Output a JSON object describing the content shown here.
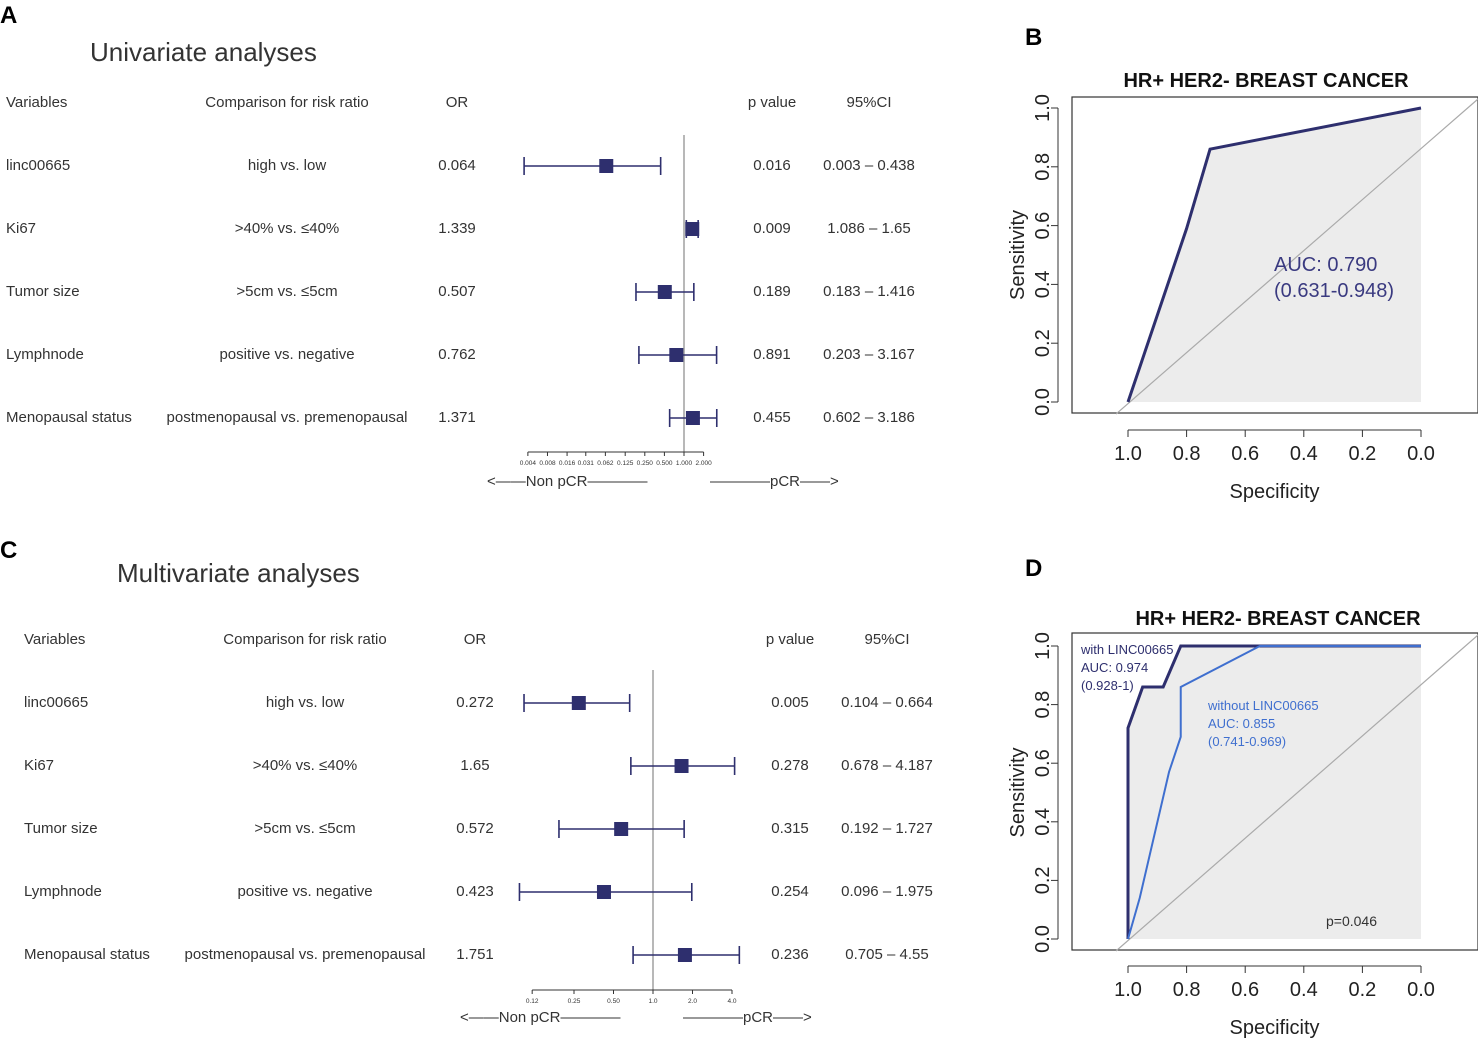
{
  "panels": {
    "a": "A",
    "b": "B",
    "c": "C",
    "d": "D"
  },
  "colors": {
    "navy": "#2e2f6e",
    "blue": "#3f6fcf",
    "gray_fill": "#ececec",
    "diag": "#aaaaaa"
  },
  "forest": {
    "headers": {
      "variables": "Variables",
      "comparison": "Comparison for risk ratio",
      "or": "OR",
      "p": "p value",
      "ci": "95%CI"
    },
    "left_arrow": "<——Non pCR————",
    "right_arrow": "————pCR——>"
  },
  "chart_data": [
    {
      "type": "forest",
      "panel": "A",
      "title": "Univariate analyses",
      "x_scale": "log2",
      "ref_line": 1,
      "tick_labels": [
        "0.004",
        "0.008",
        "0.016",
        "0.031",
        "0.062",
        "0.125",
        "0.250",
        "0.500",
        "1.000",
        "2.000"
      ],
      "rows": [
        {
          "variable": "linc00665",
          "comparison": "high vs. low",
          "or": 0.064,
          "or_text": "0.064",
          "p": "0.016",
          "ci_text": "0.003 – 0.438",
          "ci_low": 0.0035,
          "ci_high": 0.438
        },
        {
          "variable": "Ki67",
          "comparison": ">40% vs. ≤40%",
          "or": 1.339,
          "or_text": "1.339",
          "p": "0.009",
          "ci_text": "1.086 – 1.65",
          "ci_low": 1.086,
          "ci_high": 1.65
        },
        {
          "variable": "Tumor size",
          "comparison": ">5cm vs. ≤5cm",
          "or": 0.507,
          "or_text": "0.507",
          "p": "0.189",
          "ci_text": "0.183 – 1.416",
          "ci_low": 0.183,
          "ci_high": 1.416
        },
        {
          "variable": "Lymphnode",
          "comparison": "positive vs. negative",
          "or": 0.762,
          "or_text": "0.762",
          "p": "0.891",
          "ci_text": "0.203 – 3.167",
          "ci_low": 0.203,
          "ci_high": 3.167
        },
        {
          "variable": "Menopausal status",
          "comparison": "postmenopausal vs. premenopausal",
          "or": 1.371,
          "or_text": "1.371",
          "p": "0.455",
          "ci_text": "0.602 – 3.186",
          "ci_low": 0.602,
          "ci_high": 3.186
        }
      ]
    },
    {
      "type": "forest",
      "panel": "C",
      "title": "Multivariate analyses",
      "x_scale": "log2",
      "ref_line": 1,
      "tick_labels": [
        "0.12",
        "0.25",
        "0.50",
        "1.0",
        "2.0",
        "4.0"
      ],
      "rows": [
        {
          "variable": "linc00665",
          "comparison": "high vs. low",
          "or": 0.272,
          "or_text": "0.272",
          "p": "0.005",
          "ci_text": "0.104 – 0.664",
          "ci_low": 0.104,
          "ci_high": 0.664
        },
        {
          "variable": "Ki67",
          "comparison": ">40% vs. ≤40%",
          "or": 1.65,
          "or_text": "1.65",
          "p": "0.278",
          "ci_text": "0.678 – 4.187",
          "ci_low": 0.678,
          "ci_high": 4.187
        },
        {
          "variable": "Tumor size",
          "comparison": ">5cm vs. ≤5cm",
          "or": 0.572,
          "or_text": "0.572",
          "p": "0.315",
          "ci_text": "0.192 – 1.727",
          "ci_low": 0.192,
          "ci_high": 1.727
        },
        {
          "variable": "Lymphnode",
          "comparison": "positive vs. negative",
          "or": 0.423,
          "or_text": "0.423",
          "p": "0.254",
          "ci_text": "0.096 – 1.975",
          "ci_low": 0.096,
          "ci_high": 1.975
        },
        {
          "variable": "Menopausal status",
          "comparison": "postmenopausal vs. premenopausal",
          "or": 1.751,
          "or_text": "1.751",
          "p": "0.236",
          "ci_text": "0.705 – 4.55",
          "ci_low": 0.705,
          "ci_high": 4.55
        }
      ]
    },
    {
      "type": "line",
      "panel": "B",
      "title": "HR+ HER2- BREAST CANCER",
      "xlabel": "Specificity",
      "ylabel": "Sensitivity",
      "xlim": [
        1.0,
        0.0
      ],
      "ylim": [
        0.0,
        1.0
      ],
      "x_ticks": [
        "1.0",
        "0.8",
        "0.6",
        "0.4",
        "0.2",
        "0.0"
      ],
      "y_ticks": [
        "0.0",
        "0.2",
        "0.4",
        "0.6",
        "0.8",
        "1.0"
      ],
      "series": [
        {
          "name": "ROC",
          "color": "#2e2f6e",
          "x": [
            1.0,
            0.8,
            0.72,
            0.0
          ],
          "y": [
            0.0,
            0.59,
            0.86,
            1.0
          ]
        }
      ],
      "annotations": [
        {
          "text": "AUC: 0.790"
        },
        {
          "text": "(0.631-0.948)"
        }
      ]
    },
    {
      "type": "line",
      "panel": "D",
      "title": "HR+ HER2- BREAST CANCER",
      "xlabel": "Specificity",
      "ylabel": "Sensitivity",
      "xlim": [
        1.0,
        0.0
      ],
      "ylim": [
        0.0,
        1.0
      ],
      "x_ticks": [
        "1.0",
        "0.8",
        "0.6",
        "0.4",
        "0.2",
        "0.0"
      ],
      "y_ticks": [
        "0.0",
        "0.2",
        "0.4",
        "0.6",
        "0.8",
        "1.0"
      ],
      "series": [
        {
          "name": "with LINC00665",
          "color": "#2e2f6e",
          "x": [
            1.0,
            1.0,
            0.95,
            0.88,
            0.82,
            0.0
          ],
          "y": [
            0.0,
            0.72,
            0.86,
            0.86,
            1.0,
            1.0
          ],
          "label_lines": [
            "with LINC00665",
            "AUC: 0.974",
            "(0.928-1)"
          ]
        },
        {
          "name": "without LINC00665",
          "color": "#3f6fcf",
          "x": [
            1.0,
            0.96,
            0.86,
            0.82,
            0.82,
            0.55,
            0.0
          ],
          "y": [
            0.0,
            0.14,
            0.57,
            0.69,
            0.86,
            1.0,
            1.0
          ],
          "label_lines": [
            "without LINC00665",
            "AUC: 0.855",
            "(0.741-0.969)"
          ]
        }
      ],
      "annotations": [
        {
          "text": "p=0.046"
        }
      ]
    }
  ]
}
